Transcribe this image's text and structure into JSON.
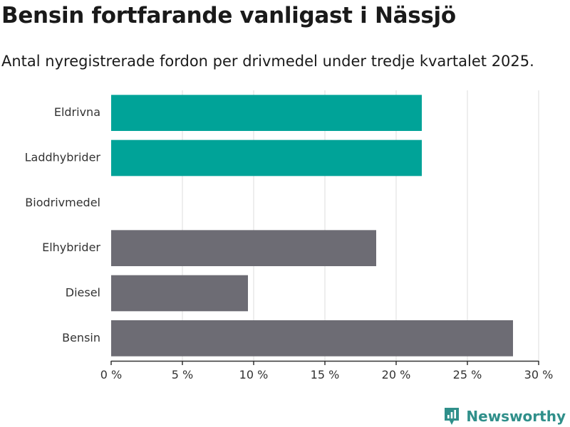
{
  "header": {
    "title": "Bensin fortfarande vanligast i Nässjö",
    "subtitle": "Antal nyregistrerade fordon per drivmedel under tredje kvartalet 2025."
  },
  "brand": {
    "name": "Newsworthy",
    "icon": "newsworthy-logo-icon",
    "color": "#2f8f8a"
  },
  "colors": {
    "highlight": "#00a398",
    "default": "#6d6c74",
    "grid": "#dddddd",
    "axis": "#333333"
  },
  "chart_data": {
    "type": "bar",
    "orientation": "horizontal",
    "categories": [
      "Eldrivna",
      "Laddhybrider",
      "Biodrivmedel",
      "Elhybrider",
      "Diesel",
      "Bensin"
    ],
    "values": [
      21.8,
      21.8,
      0,
      18.6,
      9.6,
      28.2
    ],
    "bar_colors": [
      "#00a398",
      "#00a398",
      "#6d6c74",
      "#6d6c74",
      "#6d6c74",
      "#6d6c74"
    ],
    "xlim": [
      0,
      30
    ],
    "x_ticks": [
      0,
      5,
      10,
      15,
      20,
      25,
      30
    ],
    "x_tick_labels": [
      "0 %",
      "5 %",
      "10 %",
      "15 %",
      "20 %",
      "25 %",
      "30 %"
    ],
    "grid": true,
    "legend": "none"
  }
}
